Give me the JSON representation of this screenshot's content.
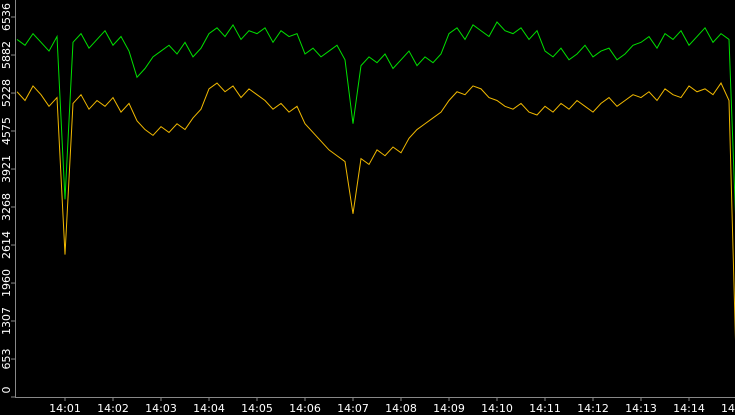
{
  "chart_data": {
    "type": "line",
    "categories": [
      null,
      null,
      null,
      null,
      null,
      null,
      "14:01",
      null,
      null,
      null,
      null,
      null,
      "14:02",
      null,
      null,
      null,
      null,
      null,
      "14:03",
      null,
      null,
      null,
      null,
      null,
      "14:04",
      null,
      null,
      null,
      null,
      null,
      "14:05",
      null,
      null,
      null,
      null,
      null,
      "14:06",
      null,
      null,
      null,
      null,
      null,
      "14:07",
      null,
      null,
      null,
      null,
      null,
      "14:08",
      null,
      null,
      null,
      null,
      null,
      "14:09",
      null,
      null,
      null,
      null,
      null,
      "14:10",
      null,
      null,
      null,
      null,
      null,
      "14:11",
      null,
      null,
      null,
      null,
      null,
      "14:12",
      null,
      null,
      null,
      null,
      null,
      "14:13",
      null,
      null,
      null,
      null,
      null,
      "14:14",
      null,
      null,
      null,
      null,
      null,
      "14"
    ],
    "series": [
      {
        "color": "#00e000",
        "values": [
          6150,
          6050,
          6250,
          6100,
          5950,
          6200,
          3400,
          6100,
          6250,
          6000,
          6150,
          6300,
          6050,
          6200,
          5950,
          5500,
          5650,
          5850,
          5950,
          6050,
          5900,
          6100,
          5850,
          6000,
          6250,
          6350,
          6200,
          6400,
          6150,
          6300,
          6250,
          6350,
          6100,
          6300,
          6200,
          6250,
          5900,
          6000,
          5850,
          5950,
          6050,
          5800,
          4700,
          5700,
          5850,
          5750,
          5900,
          5650,
          5800,
          5950,
          5700,
          5850,
          5750,
          5900,
          6250,
          6350,
          6150,
          6400,
          6300,
          6200,
          6450,
          6300,
          6250,
          6350,
          6150,
          6300,
          5950,
          5850,
          6000,
          5800,
          5900,
          6050,
          5850,
          5950,
          6000,
          5800,
          5900,
          6050,
          6100,
          6200,
          6000,
          6250,
          6150,
          6300,
          6050,
          6200,
          6350,
          6100,
          6250,
          6150,
          2450
        ]
      },
      {
        "color": "#f0b800",
        "values": [
          5250,
          5100,
          5350,
          5200,
          5000,
          5150,
          2450,
          5050,
          5200,
          4950,
          5100,
          5000,
          5150,
          4900,
          5050,
          4750,
          4600,
          4500,
          4650,
          4550,
          4700,
          4600,
          4800,
          4950,
          5300,
          5400,
          5250,
          5350,
          5150,
          5300,
          5200,
          5100,
          4950,
          5050,
          4900,
          5000,
          4700,
          4550,
          4400,
          4250,
          4150,
          4050,
          3150,
          4100,
          4000,
          4250,
          4150,
          4300,
          4200,
          4450,
          4600,
          4700,
          4800,
          4900,
          5100,
          5250,
          5200,
          5350,
          5300,
          5150,
          5100,
          5000,
          4950,
          5050,
          4900,
          4850,
          5000,
          4900,
          5050,
          4950,
          5100,
          5000,
          4900,
          5050,
          5150,
          5000,
          5100,
          5200,
          5150,
          5250,
          5100,
          5300,
          5200,
          5150,
          5350,
          5250,
          5300,
          5200,
          5400,
          5100,
          30
        ]
      }
    ],
    "ylim": [
      0,
      6536
    ],
    "yticks": [
      0,
      653,
      1307,
      1960,
      2614,
      3268,
      3921,
      4575,
      5228,
      5882,
      6536
    ],
    "background": "#000000"
  }
}
